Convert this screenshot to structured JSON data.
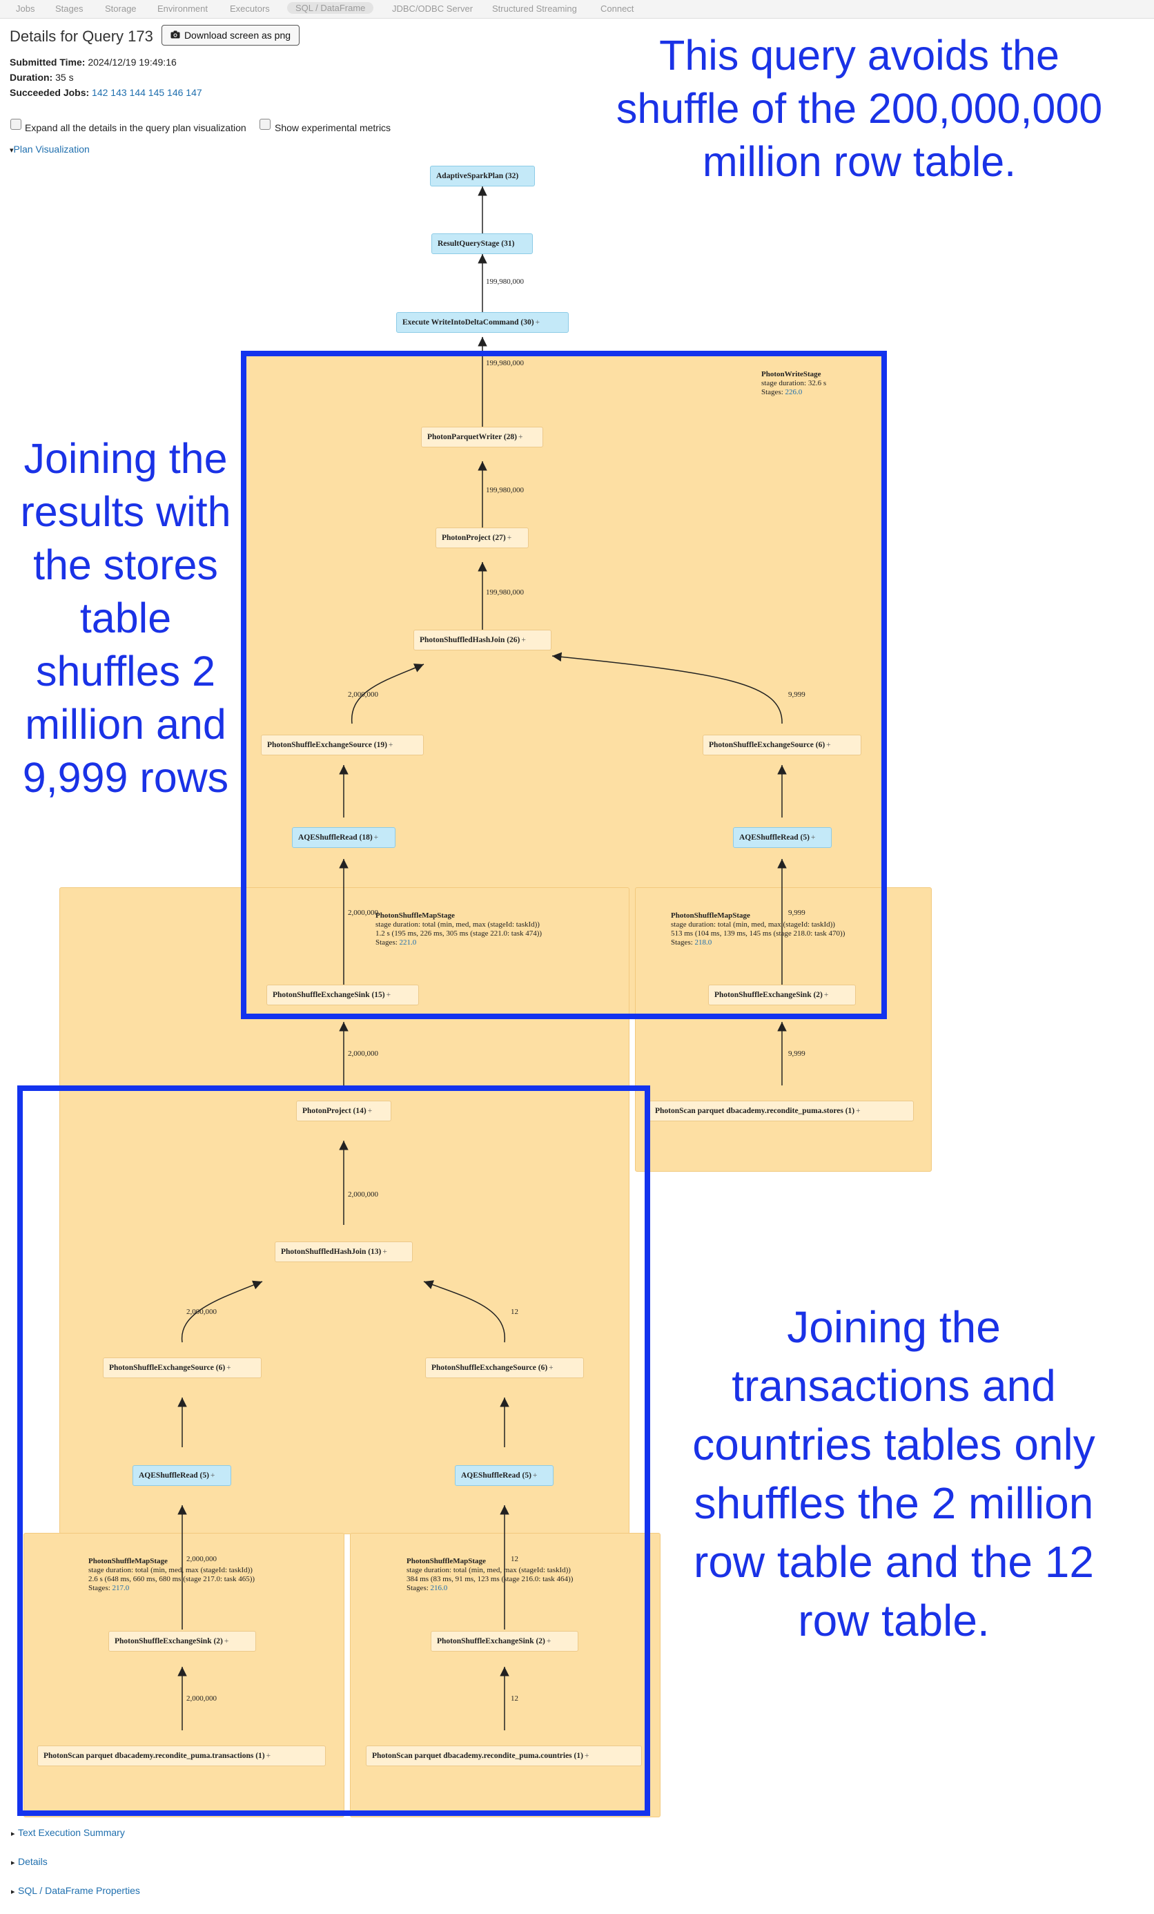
{
  "nav": {
    "items": [
      "Jobs",
      "Stages",
      "Storage",
      "Environment",
      "Executors",
      "SQL / DataFrame",
      "JDBC/ODBC Server",
      "Structured Streaming",
      "Connect"
    ],
    "active": "SQL / DataFrame"
  },
  "header": {
    "title": "Details for Query 173",
    "download_label": "Download screen as png"
  },
  "summary": {
    "submitted_label": "Submitted Time:",
    "submitted_value": "2024/12/19 19:49:16",
    "duration_label": "Duration:",
    "duration_value": "35 s",
    "jobs_label": "Succeeded Jobs:",
    "jobs": [
      "142",
      "143",
      "144",
      "145",
      "146",
      "147"
    ]
  },
  "options": {
    "expand_label": "Expand all the details in the query plan visualization",
    "experimental_label": "Show experimental metrics",
    "plan_viz_label": "Plan Visualization"
  },
  "plan": {
    "nodes": {
      "n32": {
        "label": "AdaptiveSparkPlan (32)"
      },
      "n31": {
        "label": "ResultQueryStage (31)"
      },
      "n30": {
        "label": "Execute WriteIntoDeltaCommand (30)",
        "plus": "+"
      },
      "n28": {
        "label": "PhotonParquetWriter (28)",
        "plus": "+"
      },
      "n27": {
        "label": "PhotonProject (27)",
        "plus": "+"
      },
      "n26": {
        "label": "PhotonShuffledHashJoin (26)",
        "plus": "+"
      },
      "n19": {
        "label": "PhotonShuffleExchangeSource (19)",
        "plus": "+"
      },
      "n6a": {
        "label": "PhotonShuffleExchangeSource (6)",
        "plus": "+"
      },
      "n18": {
        "label": "AQEShuffleRead (18)",
        "plus": "+"
      },
      "n5a": {
        "label": "AQEShuffleRead (5)",
        "plus": "+"
      },
      "n15": {
        "label": "PhotonShuffleExchangeSink (15)",
        "plus": "+"
      },
      "n2a": {
        "label": "PhotonShuffleExchangeSink (2)",
        "plus": "+"
      },
      "n1a": {
        "label": "PhotonScan parquet dbacademy.recondite_puma.stores (1)",
        "plus": "+"
      },
      "n14": {
        "label": "PhotonProject (14)",
        "plus": "+"
      },
      "n13": {
        "label": "PhotonShuffledHashJoin (13)",
        "plus": "+"
      },
      "n6b": {
        "label": "PhotonShuffleExchangeSource (6)",
        "plus": "+"
      },
      "n6c": {
        "label": "PhotonShuffleExchangeSource (6)",
        "plus": "+"
      },
      "n5b": {
        "label": "AQEShuffleRead (5)",
        "plus": "+"
      },
      "n5c": {
        "label": "AQEShuffleRead (5)",
        "plus": "+"
      },
      "n2b": {
        "label": "PhotonShuffleExchangeSink (2)",
        "plus": "+"
      },
      "n2c": {
        "label": "PhotonShuffleExchangeSink (2)",
        "plus": "+"
      },
      "n1b": {
        "label": "PhotonScan parquet dbacademy.recondite_puma.transactions (1)",
        "plus": "+"
      },
      "n1c": {
        "label": "PhotonScan parquet dbacademy.recondite_puma.countries (1)",
        "plus": "+"
      }
    },
    "stages": {
      "write": {
        "title": "PhotonWriteStage",
        "line1": "stage duration: 32.6 s",
        "stages_label": "Stages:",
        "stage_id": "226.0"
      },
      "map221": {
        "title": "PhotonShuffleMapStage",
        "line1": "stage duration: total (min, med, max (stageId: taskId))",
        "line2": "1.2 s (195 ms, 226 ms, 305 ms (stage 221.0: task 474))",
        "stages_label": "Stages:",
        "stage_id": "221.0"
      },
      "map218": {
        "title": "PhotonShuffleMapStage",
        "line1": "stage duration: total (min, med, max (stageId: taskId))",
        "line2": "513 ms (104 ms, 139 ms, 145 ms (stage 218.0: task 470))",
        "stages_label": "Stages:",
        "stage_id": "218.0"
      },
      "map217": {
        "title": "PhotonShuffleMapStage",
        "line1": "stage duration: total (min, med, max (stageId: taskId))",
        "line2": "2.6 s (648 ms, 660 ms, 680 ms (stage 217.0: task 465))",
        "stages_label": "Stages:",
        "stage_id": "217.0"
      },
      "map216": {
        "title": "PhotonShuffleMapStage",
        "line1": "stage duration: total (min, med, max (stageId: taskId))",
        "line2": "384 ms (83 ms, 91 ms, 123 ms (stage 216.0: task 464))",
        "stages_label": "Stages:",
        "stage_id": "216.0"
      }
    },
    "edge_labels": {
      "e31_30": "199,980,000",
      "e30_28": "199,980,000",
      "e28_27": "199,980,000",
      "e27_26": "199,980,000",
      "e26_19": "2,000,000",
      "e26_6a": "9,999",
      "e18_15": "2,000,000",
      "e5a_2a": "9,999",
      "e15_14": "2,000,000",
      "e2a_1a": "9,999",
      "e14_13": "2,000,000",
      "e13_6b": "2,000,000",
      "e13_6c": "12",
      "e5b_2b": "2,000,000",
      "e5c_2c": "12",
      "e2b_1b": "2,000,000",
      "e2c_1c": "12"
    }
  },
  "annotations": {
    "top": "This query avoids the shuffle of the 200,000,000 million row table.",
    "left": "Joining the results with the stores table shuffles 2 million and 9,999 rows",
    "right": "Joining the transactions and countries tables only shuffles the 2 million row table and the 12 row table."
  },
  "footer": {
    "text_summary": "Text Execution Summary",
    "details": "Details",
    "properties": "SQL / DataFrame Properties"
  },
  "colors": {
    "annotation": "#1a32e6",
    "stage_fill": "#fddfa3",
    "node_blue": "#c4e9f8",
    "link": "#1f6fae"
  }
}
